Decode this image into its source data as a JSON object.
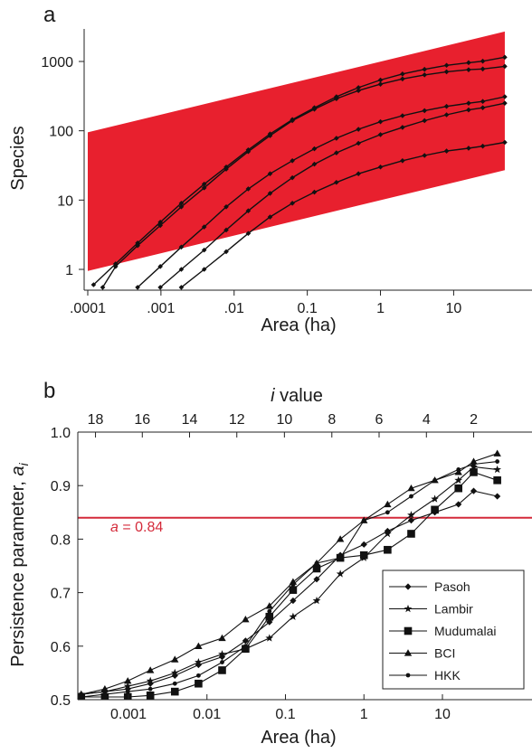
{
  "chart_data": [
    {
      "panel_label": "a",
      "type": "line",
      "x_scale": "log",
      "y_scale": "log",
      "xlabel": "Area (ha)",
      "ylabel": "Species",
      "xlim": [
        0.0001,
        50
      ],
      "ylim": [
        0.55,
        3000
      ],
      "x_ticks": [
        {
          "value": 0.0001,
          "label": ".0001"
        },
        {
          "value": 0.001,
          "label": ".001"
        },
        {
          "value": 0.01,
          "label": ".01"
        },
        {
          "value": 0.1,
          "label": "0.1"
        },
        {
          "value": 1,
          "label": "1"
        },
        {
          "value": 10,
          "label": "10"
        }
      ],
      "y_ticks": [
        {
          "value": 1,
          "label": "1"
        },
        {
          "value": 10,
          "label": "10"
        },
        {
          "value": 100,
          "label": "100"
        },
        {
          "value": 1000,
          "label": "1000"
        }
      ],
      "band": {
        "color": "#e8202e",
        "x": [
          0.0001,
          50
        ],
        "lower": [
          0.95,
          27
        ],
        "upper": [
          95,
          2700
        ]
      },
      "series": [
        {
          "values": [
            [
              0.00012,
              0.6
            ],
            [
              0.00024,
              1.2
            ],
            [
              0.00048,
              2.4
            ],
            [
              0.00098,
              4.8
            ],
            [
              0.0019,
              9
            ],
            [
              0.0039,
              17
            ],
            [
              0.0078,
              30
            ],
            [
              0.0156,
              53
            ],
            [
              0.031,
              90
            ],
            [
              0.0625,
              145
            ],
            [
              0.125,
              215
            ],
            [
              0.25,
              310
            ],
            [
              0.5,
              420
            ],
            [
              1,
              540
            ],
            [
              2,
              660
            ],
            [
              4,
              770
            ],
            [
              8,
              880
            ],
            [
              16,
              960
            ],
            [
              25,
              1010
            ],
            [
              50,
              1150
            ]
          ]
        },
        {
          "values": [
            [
              0.00016,
              0.55
            ],
            [
              0.00024,
              1.1
            ],
            [
              0.00048,
              2.2
            ],
            [
              0.00098,
              4.3
            ],
            [
              0.0019,
              8
            ],
            [
              0.0039,
              15
            ],
            [
              0.0078,
              28
            ],
            [
              0.0156,
              50
            ],
            [
              0.031,
              85
            ],
            [
              0.0625,
              140
            ],
            [
              0.125,
              205
            ],
            [
              0.25,
              290
            ],
            [
              0.5,
              380
            ],
            [
              1,
              470
            ],
            [
              2,
              560
            ],
            [
              4,
              640
            ],
            [
              8,
              710
            ],
            [
              16,
              760
            ],
            [
              25,
              780
            ],
            [
              50,
              850
            ]
          ]
        },
        {
          "values": [
            [
              0.00048,
              0.55
            ],
            [
              0.00098,
              1.1
            ],
            [
              0.0019,
              2.1
            ],
            [
              0.0039,
              4.1
            ],
            [
              0.0078,
              8
            ],
            [
              0.0156,
              14.5
            ],
            [
              0.031,
              24
            ],
            [
              0.0625,
              37
            ],
            [
              0.125,
              55
            ],
            [
              0.25,
              78
            ],
            [
              0.5,
              105
            ],
            [
              1,
              135
            ],
            [
              2,
              165
            ],
            [
              4,
              195
            ],
            [
              8,
              225
            ],
            [
              16,
              250
            ],
            [
              25,
              265
            ],
            [
              50,
              310
            ]
          ]
        },
        {
          "values": [
            [
              0.00098,
              0.55
            ],
            [
              0.0019,
              1.0
            ],
            [
              0.0039,
              1.9
            ],
            [
              0.0078,
              3.7
            ],
            [
              0.0156,
              7
            ],
            [
              0.031,
              12.5
            ],
            [
              0.0625,
              21
            ],
            [
              0.125,
              33
            ],
            [
              0.25,
              48
            ],
            [
              0.5,
              66
            ],
            [
              1,
              88
            ],
            [
              2,
              112
            ],
            [
              4,
              140
            ],
            [
              8,
              170
            ],
            [
              16,
              200
            ],
            [
              25,
              215
            ],
            [
              50,
              250
            ]
          ]
        },
        {
          "values": [
            [
              0.0019,
              0.55
            ],
            [
              0.0039,
              1.0
            ],
            [
              0.0078,
              1.8
            ],
            [
              0.0156,
              3.3
            ],
            [
              0.031,
              5.7
            ],
            [
              0.0625,
              9
            ],
            [
              0.125,
              13
            ],
            [
              0.25,
              18
            ],
            [
              0.5,
              24
            ],
            [
              1,
              30
            ],
            [
              2,
              37
            ],
            [
              4,
              44
            ],
            [
              8,
              51
            ],
            [
              16,
              56
            ],
            [
              25,
              60
            ],
            [
              50,
              68
            ]
          ]
        }
      ]
    },
    {
      "panel_label": "b",
      "type": "line",
      "x_scale": "log",
      "xlabel": "Area (ha)",
      "ylabel_main": "Persistence parameter, ",
      "ylabel_sub": "a",
      "ylabel_subscript": "i",
      "top_axis_label_italic": "i",
      "top_axis_label": " value",
      "xlim": [
        0.00025,
        50
      ],
      "ylim": [
        0.5,
        1.0
      ],
      "x_ticks": [
        {
          "value": 0.001,
          "label": "0.001"
        },
        {
          "value": 0.01,
          "label": "0.01"
        },
        {
          "value": 0.1,
          "label": "0.1"
        },
        {
          "value": 1,
          "label": "1"
        },
        {
          "value": 10,
          "label": "10"
        }
      ],
      "y_ticks": [
        {
          "value": 0.5,
          "label": "0.5"
        },
        {
          "value": 0.6,
          "label": "0.6"
        },
        {
          "value": 0.7,
          "label": "0.7"
        },
        {
          "value": 0.8,
          "label": "0.8"
        },
        {
          "value": 0.9,
          "label": "0.9"
        },
        {
          "value": 1.0,
          "label": "1.0"
        }
      ],
      "top_ticks": [
        {
          "label": "18",
          "area": 0.00038
        },
        {
          "label": "16",
          "area": 0.0015
        },
        {
          "label": "14",
          "area": 0.006
        },
        {
          "label": "12",
          "area": 0.024
        },
        {
          "label": "10",
          "area": 0.097
        },
        {
          "label": "8",
          "area": 0.39
        },
        {
          "label": "6",
          "area": 1.56
        },
        {
          "label": "4",
          "area": 6.25
        },
        {
          "label": "2",
          "area": 25
        }
      ],
      "reference_line": {
        "value": 0.84,
        "color": "#d42a3a",
        "label_italic": "a",
        "label": " = 0.84"
      },
      "legend_position": "lower-right",
      "series": [
        {
          "name": "Pasoh",
          "marker": "diamond",
          "values": [
            [
              0.00025,
              0.51
            ],
            [
              0.0005,
              0.515
            ],
            [
              0.00098,
              0.52
            ],
            [
              0.0019,
              0.53
            ],
            [
              0.0039,
              0.545
            ],
            [
              0.0078,
              0.565
            ],
            [
              0.0156,
              0.58
            ],
            [
              0.031,
              0.61
            ],
            [
              0.0625,
              0.645
            ],
            [
              0.125,
              0.685
            ],
            [
              0.25,
              0.725
            ],
            [
              0.5,
              0.77
            ],
            [
              1,
              0.79
            ],
            [
              2,
              0.815
            ],
            [
              4,
              0.835
            ],
            [
              8,
              0.85
            ],
            [
              16,
              0.865
            ],
            [
              25,
              0.89
            ],
            [
              50,
              0.88
            ]
          ]
        },
        {
          "name": "Lambir",
          "marker": "star",
          "values": [
            [
              0.00025,
              0.51
            ],
            [
              0.0005,
              0.515
            ],
            [
              0.00098,
              0.525
            ],
            [
              0.0019,
              0.535
            ],
            [
              0.0039,
              0.55
            ],
            [
              0.0078,
              0.57
            ],
            [
              0.0156,
              0.585
            ],
            [
              0.031,
              0.595
            ],
            [
              0.0625,
              0.615
            ],
            [
              0.125,
              0.655
            ],
            [
              0.25,
              0.685
            ],
            [
              0.5,
              0.735
            ],
            [
              1,
              0.765
            ],
            [
              2,
              0.81
            ],
            [
              4,
              0.845
            ],
            [
              8,
              0.875
            ],
            [
              16,
              0.91
            ],
            [
              25,
              0.935
            ],
            [
              50,
              0.93
            ]
          ]
        },
        {
          "name": "Mudumalai",
          "marker": "square",
          "values": [
            [
              0.00025,
              0.505
            ],
            [
              0.0005,
              0.505
            ],
            [
              0.00098,
              0.505
            ],
            [
              0.0019,
              0.508
            ],
            [
              0.0039,
              0.515
            ],
            [
              0.0078,
              0.53
            ],
            [
              0.0156,
              0.555
            ],
            [
              0.031,
              0.595
            ],
            [
              0.0625,
              0.655
            ],
            [
              0.125,
              0.705
            ],
            [
              0.25,
              0.745
            ],
            [
              0.5,
              0.765
            ],
            [
              1,
              0.77
            ],
            [
              2,
              0.78
            ],
            [
              4,
              0.81
            ],
            [
              8,
              0.855
            ],
            [
              16,
              0.895
            ],
            [
              25,
              0.925
            ],
            [
              50,
              0.91
            ]
          ]
        },
        {
          "name": "BCI",
          "marker": "triangle",
          "values": [
            [
              0.00025,
              0.51
            ],
            [
              0.0005,
              0.52
            ],
            [
              0.00098,
              0.535
            ],
            [
              0.0019,
              0.555
            ],
            [
              0.0039,
              0.575
            ],
            [
              0.0078,
              0.6
            ],
            [
              0.0156,
              0.615
            ],
            [
              0.031,
              0.65
            ],
            [
              0.0625,
              0.675
            ],
            [
              0.125,
              0.72
            ],
            [
              0.25,
              0.755
            ],
            [
              0.5,
              0.8
            ],
            [
              1,
              0.835
            ],
            [
              2,
              0.865
            ],
            [
              4,
              0.895
            ],
            [
              8,
              0.91
            ],
            [
              16,
              0.925
            ],
            [
              25,
              0.945
            ],
            [
              50,
              0.96
            ]
          ]
        },
        {
          "name": "HKK",
          "marker": "circle",
          "values": [
            [
              0.00025,
              0.505
            ],
            [
              0.0005,
              0.51
            ],
            [
              0.00098,
              0.515
            ],
            [
              0.0019,
              0.52
            ],
            [
              0.0039,
              0.53
            ],
            [
              0.0078,
              0.545
            ],
            [
              0.0156,
              0.57
            ],
            [
              0.031,
              0.6
            ],
            [
              0.0625,
              0.665
            ],
            [
              0.125,
              0.715
            ],
            [
              0.25,
              0.755
            ],
            [
              0.5,
              0.765
            ],
            [
              1,
              0.835
            ],
            [
              2,
              0.85
            ],
            [
              4,
              0.88
            ],
            [
              8,
              0.91
            ],
            [
              16,
              0.93
            ],
            [
              25,
              0.94
            ],
            [
              50,
              0.945
            ]
          ]
        }
      ]
    }
  ]
}
